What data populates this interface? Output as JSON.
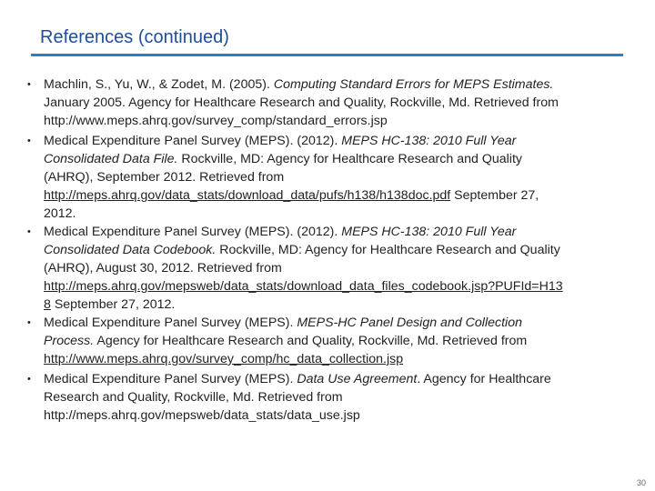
{
  "slide": {
    "title": "References (continued)",
    "page_number": "30"
  },
  "bullet_glyph": "•",
  "references": [
    {
      "line1_a": "Machlin, S., Yu, W., & Zodet, M. (2005). ",
      "line1_b": "Computing Standard Errors for MEPS Estimates.",
      "line2": "January 2005. Agency for Healthcare Research and Quality, Rockville, Md. Retrieved from",
      "line3": "http://www.meps.ahrq.gov/survey_comp/standard_errors.jsp"
    },
    {
      "line1_a": "Medical Expenditure Panel Survey (MEPS). (2012). ",
      "line1_b": "MEPS HC-138: 2010 Full Year",
      "line2_a": "Consolidated Data File.",
      "line2_b": "  Rockville, MD: Agency for Healthcare Research and Quality",
      "line3": "(AHRQ), September 2012.  Retrieved from",
      "line4_link": "http://meps.ahrq.gov/data_stats/download_data/pufs/h138/h138doc.pdf",
      "line4_b": " September 27,",
      "line5": "2012."
    },
    {
      "line1_a": "Medical Expenditure Panel Survey (MEPS). (2012). ",
      "line1_b": "MEPS HC-138: 2010 Full Year",
      "line2_a": "Consolidated Data Codebook.",
      "line2_b": "  Rockville, MD: Agency for Healthcare Research and Quality",
      "line3": "(AHRQ), August 30, 2012.  Retrieved from",
      "line4_link": "http://meps.ahrq.gov/mepsweb/data_stats/download_data_files_codebook.jsp?PUFId=H13",
      "line5_link": "8",
      "line5_b": " September 27, 2012."
    },
    {
      "line1_a": "Medical Expenditure Panel Survey (MEPS).  ",
      "line1_b": "MEPS-HC Panel Design and Collection",
      "line2_a": "Process.",
      "line2_b": " Agency for Healthcare Research and Quality, Rockville, Md. Retrieved from",
      "line3_link": "http://www.meps.ahrq.gov/survey_comp/hc_data_collection.jsp"
    },
    {
      "line1_a": "Medical Expenditure Panel Survey (MEPS).  ",
      "line1_b": "Data Use Agreement",
      "line1_c": ". Agency for Healthcare",
      "line2": "Research and Quality, Rockville, Md. Retrieved from",
      "line3": "http://meps.ahrq.gov/mepsweb/data_stats/data_use.jsp"
    }
  ]
}
